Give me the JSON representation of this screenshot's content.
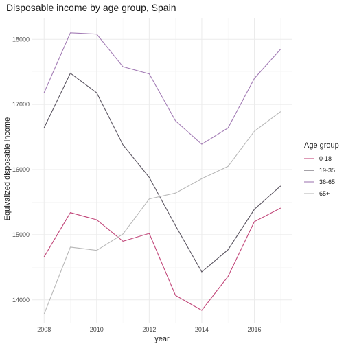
{
  "chart_data": {
    "type": "line",
    "title": "Disposable income by age group, Spain",
    "xlabel": "year",
    "ylabel": "Equivalized disposable income",
    "x": [
      2008,
      2009,
      2010,
      2011,
      2012,
      2013,
      2014,
      2015,
      2016,
      2017
    ],
    "xlim": [
      2007.55,
      2017.45
    ],
    "ylim": [
      13650,
      18330
    ],
    "xticks": [
      2008,
      2010,
      2012,
      2014,
      2016
    ],
    "yticks": [
      14000,
      15000,
      16000,
      17000,
      18000
    ],
    "grid": true,
    "legend": {
      "title": "Age group",
      "position": "right"
    },
    "series": [
      {
        "name": "0-18",
        "color": "#c2477a",
        "values": [
          14660,
          15340,
          15230,
          14900,
          15020,
          14070,
          13840,
          14360,
          15200,
          15410
        ]
      },
      {
        "name": "19-35",
        "color": "#5b5561",
        "values": [
          16640,
          17480,
          17180,
          16380,
          15880,
          15140,
          14430,
          14770,
          15390,
          15750
        ]
      },
      {
        "name": "36-65",
        "color": "#a37cb5",
        "values": [
          17180,
          18100,
          18080,
          17580,
          17470,
          16750,
          16390,
          16640,
          17400,
          17850
        ]
      },
      {
        "name": "65+",
        "color": "#b8b8b8",
        "values": [
          13780,
          14810,
          14760,
          15010,
          15550,
          15640,
          15860,
          16050,
          16590,
          16890
        ]
      }
    ]
  }
}
